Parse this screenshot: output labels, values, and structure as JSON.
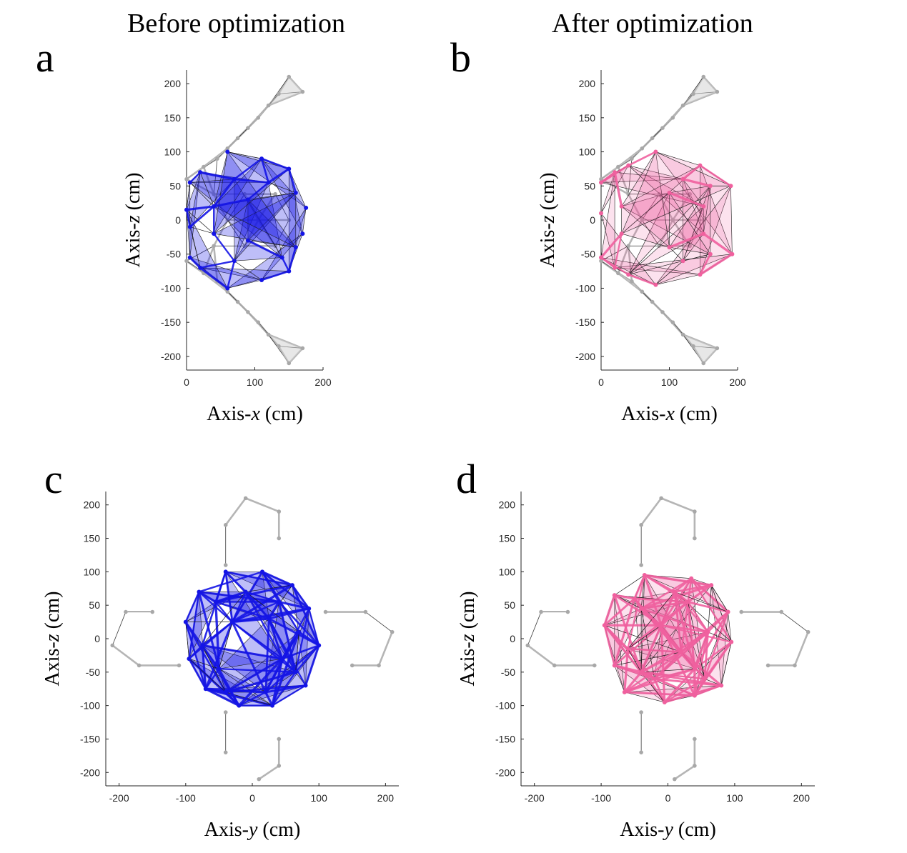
{
  "titles": {
    "left": "Before optimization",
    "right": "After optimization"
  },
  "colors": {
    "before": "#1414e6",
    "after": "#f0609e",
    "truss_gray": "#a8a8a8",
    "truss_fill": "#d4d4d4",
    "edge_dark": "#1a1a1a"
  },
  "chart_data": [
    {
      "panel": "a",
      "type": "scatter",
      "title": "Before optimization",
      "xlabel": "Axis-x (cm)",
      "ylabel": "Axis-z (cm)",
      "xlim": [
        0,
        200
      ],
      "ylim": [
        -220,
        220
      ],
      "xticks": [
        0,
        100,
        200
      ],
      "yticks": [
        200,
        150,
        100,
        50,
        0,
        -50,
        -100,
        -150,
        -200
      ],
      "series": [
        {
          "role": "fixed",
          "color": "#a8a8a8",
          "points": [
            [
              150,
              210
            ],
            [
              170,
              188
            ],
            [
              135,
              185
            ],
            [
              120,
              168
            ],
            [
              105,
              150
            ],
            [
              90,
              135
            ],
            [
              75,
              120
            ],
            [
              60,
              105
            ],
            [
              45,
              90
            ],
            [
              25,
              78
            ],
            [
              0,
              60
            ],
            [
              0,
              -60
            ],
            [
              25,
              -78
            ],
            [
              45,
              -90
            ],
            [
              60,
              -105
            ],
            [
              75,
              -120
            ],
            [
              90,
              -135
            ],
            [
              105,
              -150
            ],
            [
              120,
              -168
            ],
            [
              135,
              -185
            ],
            [
              170,
              -188
            ],
            [
              150,
              -210
            ],
            [
              40,
              38
            ],
            [
              85,
              38
            ],
            [
              130,
              38
            ],
            [
              40,
              -38
            ],
            [
              85,
              -38
            ],
            [
              130,
              -38
            ],
            [
              60,
              0
            ],
            [
              105,
              0
            ],
            [
              150,
              0
            ]
          ]
        },
        {
          "role": "moving",
          "color": "#1414e6",
          "points": [
            [
              60,
              100
            ],
            [
              110,
              90
            ],
            [
              150,
              75
            ],
            [
              175,
              18
            ],
            [
              170,
              -20
            ],
            [
              150,
              -75
            ],
            [
              110,
              -88
            ],
            [
              60,
              -100
            ],
            [
              20,
              -70
            ],
            [
              5,
              -55
            ],
            [
              0,
              15
            ],
            [
              5,
              -10
            ],
            [
              20,
              70
            ],
            [
              5,
              55
            ],
            [
              70,
              60
            ],
            [
              120,
              55
            ],
            [
              140,
              -55
            ],
            [
              70,
              -60
            ],
            [
              90,
              30
            ],
            [
              90,
              -30
            ],
            [
              160,
              40
            ],
            [
              160,
              -40
            ],
            [
              40,
              20
            ],
            [
              40,
              -20
            ]
          ]
        }
      ]
    },
    {
      "panel": "b",
      "type": "scatter",
      "title": "After optimization",
      "xlabel": "Axis-x (cm)",
      "ylabel": "Axis-z (cm)",
      "xlim": [
        0,
        200
      ],
      "ylim": [
        -220,
        220
      ],
      "xticks": [
        0,
        100,
        200
      ],
      "yticks": [
        200,
        150,
        100,
        50,
        0,
        -50,
        -100,
        -150,
        -200
      ],
      "series": [
        {
          "role": "fixed",
          "color": "#a8a8a8",
          "points": [
            [
              150,
              210
            ],
            [
              170,
              188
            ],
            [
              135,
              185
            ],
            [
              120,
              168
            ],
            [
              105,
              150
            ],
            [
              90,
              135
            ],
            [
              75,
              120
            ],
            [
              60,
              105
            ],
            [
              45,
              90
            ],
            [
              25,
              78
            ],
            [
              0,
              60
            ],
            [
              0,
              -60
            ],
            [
              25,
              -78
            ],
            [
              45,
              -90
            ],
            [
              60,
              -105
            ],
            [
              75,
              -120
            ],
            [
              90,
              -135
            ],
            [
              105,
              -150
            ],
            [
              120,
              -168
            ],
            [
              135,
              -185
            ],
            [
              170,
              -188
            ],
            [
              150,
              -210
            ],
            [
              40,
              38
            ],
            [
              85,
              38
            ],
            [
              130,
              38
            ],
            [
              40,
              -38
            ],
            [
              85,
              -38
            ],
            [
              130,
              -38
            ],
            [
              60,
              0
            ],
            [
              105,
              0
            ],
            [
              150,
              0
            ]
          ]
        },
        {
          "role": "moving",
          "color": "#f0609e",
          "points": [
            [
              80,
              100
            ],
            [
              145,
              80
            ],
            [
              190,
              50
            ],
            [
              192,
              -50
            ],
            [
              145,
              -80
            ],
            [
              80,
              -95
            ],
            [
              20,
              -70
            ],
            [
              0,
              -55
            ],
            [
              0,
              10
            ],
            [
              20,
              70
            ],
            [
              0,
              55
            ],
            [
              40,
              80
            ],
            [
              120,
              60
            ],
            [
              150,
              20
            ],
            [
              150,
              -20
            ],
            [
              120,
              -60
            ],
            [
              40,
              -80
            ],
            [
              160,
              50
            ],
            [
              160,
              -50
            ],
            [
              100,
              40
            ],
            [
              100,
              -40
            ],
            [
              30,
              20
            ],
            [
              30,
              -20
            ]
          ]
        }
      ]
    },
    {
      "panel": "c",
      "type": "scatter",
      "xlabel": "Axis-y (cm)",
      "ylabel": "Axis-z (cm)",
      "xlim": [
        -220,
        220
      ],
      "ylim": [
        -220,
        220
      ],
      "xticks": [
        -200,
        -100,
        0,
        100,
        200
      ],
      "yticks": [
        200,
        150,
        100,
        50,
        0,
        -50,
        -100,
        -150,
        -200
      ],
      "series": [
        {
          "role": "fixed",
          "color": "#a8a8a8",
          "points": [
            [
              -10,
              210
            ],
            [
              40,
              190
            ],
            [
              -40,
              170
            ],
            [
              40,
              150
            ],
            [
              -40,
              110
            ],
            [
              -40,
              -110
            ],
            [
              40,
              -150
            ],
            [
              -40,
              -170
            ],
            [
              40,
              -190
            ],
            [
              10,
              -210
            ],
            [
              -210,
              -10
            ],
            [
              -190,
              40
            ],
            [
              -170,
              -40
            ],
            [
              -150,
              40
            ],
            [
              -110,
              -40
            ],
            [
              110,
              40
            ],
            [
              150,
              -40
            ],
            [
              170,
              40
            ],
            [
              190,
              -40
            ],
            [
              210,
              10
            ]
          ]
        },
        {
          "role": "moving",
          "color": "#1414e6",
          "points": [
            [
              -40,
              100
            ],
            [
              15,
              100
            ],
            [
              60,
              80
            ],
            [
              85,
              45
            ],
            [
              100,
              -10
            ],
            [
              80,
              -70
            ],
            [
              30,
              -100
            ],
            [
              -20,
              -100
            ],
            [
              -70,
              -75
            ],
            [
              -95,
              -30
            ],
            [
              -100,
              25
            ],
            [
              -80,
              70
            ],
            [
              -55,
              55
            ],
            [
              -10,
              70
            ],
            [
              40,
              55
            ],
            [
              70,
              10
            ],
            [
              65,
              -50
            ],
            [
              20,
              -80
            ],
            [
              -40,
              -80
            ],
            [
              -75,
              -10
            ],
            [
              -50,
              -45
            ],
            [
              45,
              -30
            ],
            [
              -30,
              25
            ],
            [
              25,
              30
            ]
          ]
        }
      ]
    },
    {
      "panel": "d",
      "type": "scatter",
      "xlabel": "Axis-y (cm)",
      "ylabel": "Axis-z (cm)",
      "xlim": [
        -220,
        220
      ],
      "ylim": [
        -220,
        220
      ],
      "xticks": [
        -200,
        -100,
        0,
        100,
        200
      ],
      "yticks": [
        200,
        150,
        100,
        50,
        0,
        -50,
        -100,
        -150,
        -200
      ],
      "series": [
        {
          "role": "fixed",
          "color": "#a8a8a8",
          "points": [
            [
              -10,
              210
            ],
            [
              40,
              190
            ],
            [
              -40,
              170
            ],
            [
              40,
              150
            ],
            [
              -40,
              110
            ],
            [
              -40,
              -110
            ],
            [
              40,
              -150
            ],
            [
              -40,
              -170
            ],
            [
              40,
              -190
            ],
            [
              10,
              -210
            ],
            [
              -210,
              -10
            ],
            [
              -190,
              40
            ],
            [
              -170,
              -40
            ],
            [
              -150,
              40
            ],
            [
              -110,
              -40
            ],
            [
              110,
              40
            ],
            [
              150,
              -40
            ],
            [
              170,
              40
            ],
            [
              190,
              -40
            ],
            [
              210,
              10
            ]
          ]
        },
        {
          "role": "moving",
          "color": "#f0609e",
          "points": [
            [
              -35,
              95
            ],
            [
              35,
              90
            ],
            [
              65,
              80
            ],
            [
              90,
              40
            ],
            [
              95,
              -5
            ],
            [
              80,
              -70
            ],
            [
              40,
              -85
            ],
            [
              -5,
              -95
            ],
            [
              -65,
              -80
            ],
            [
              -80,
              -40
            ],
            [
              -95,
              20
            ],
            [
              -80,
              65
            ],
            [
              -40,
              45
            ],
            [
              30,
              55
            ],
            [
              60,
              10
            ],
            [
              40,
              -45
            ],
            [
              -20,
              -60
            ],
            [
              -60,
              -15
            ],
            [
              -10,
              20
            ],
            [
              20,
              -20
            ],
            [
              10,
              70
            ],
            [
              -50,
              60
            ],
            [
              55,
              -60
            ],
            [
              -40,
              -50
            ]
          ]
        }
      ]
    }
  ]
}
